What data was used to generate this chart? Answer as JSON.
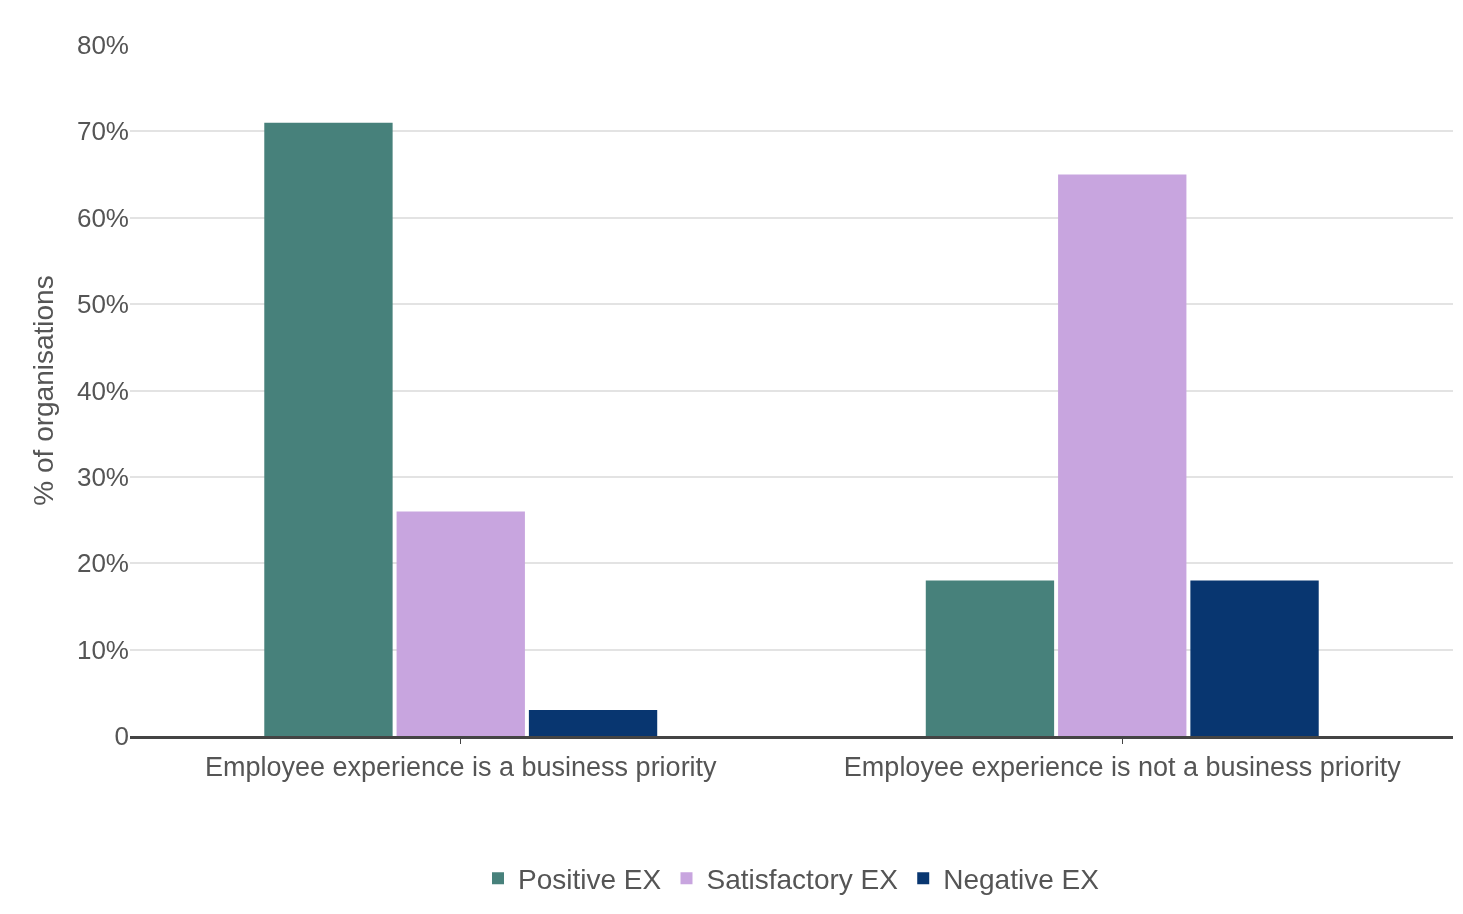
{
  "chart_data": {
    "type": "bar",
    "ylabel": "% of organisations",
    "categories": [
      "Employee experience is a business priority",
      "Employee experience is not a business priority"
    ],
    "series": [
      {
        "name": "Positive EX",
        "color": "#47817b",
        "values": [
          71,
          18
        ]
      },
      {
        "name": "Satisfactory EX",
        "color": "#c8a5df",
        "values": [
          26,
          65
        ]
      },
      {
        "name": "Negative EX",
        "color": "#083670",
        "values": [
          3,
          18
        ]
      }
    ],
    "ylim": [
      0,
      80
    ],
    "yticks": [
      0,
      {
        "value": 10,
        "label": "10%"
      },
      {
        "value": 20,
        "label": "20%"
      },
      {
        "value": 30,
        "label": "30%"
      },
      {
        "value": 40,
        "label": "40%"
      },
      {
        "value": 50,
        "label": "50%"
      },
      {
        "value": 60,
        "label": "60%"
      },
      {
        "value": 70,
        "label": "70%"
      },
      {
        "value": 80,
        "label": "80%"
      }
    ],
    "grid": "y",
    "legend": "bottom"
  }
}
